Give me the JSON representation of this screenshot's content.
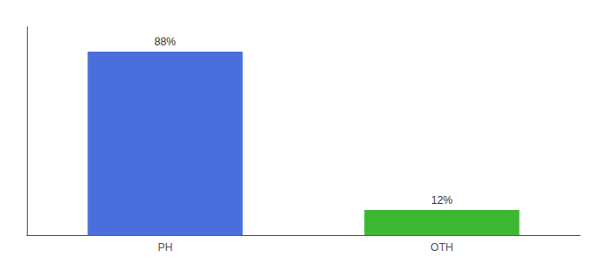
{
  "chart_data": {
    "type": "bar",
    "categories": [
      "PH",
      "OTH"
    ],
    "values": [
      88,
      12
    ],
    "value_labels": [
      "88%",
      "12%"
    ],
    "colors": [
      "#4a6fdc",
      "#3db832"
    ],
    "ylim": [
      0,
      100
    ],
    "data_labels": true,
    "tick_labels": "x",
    "grid": false
  }
}
